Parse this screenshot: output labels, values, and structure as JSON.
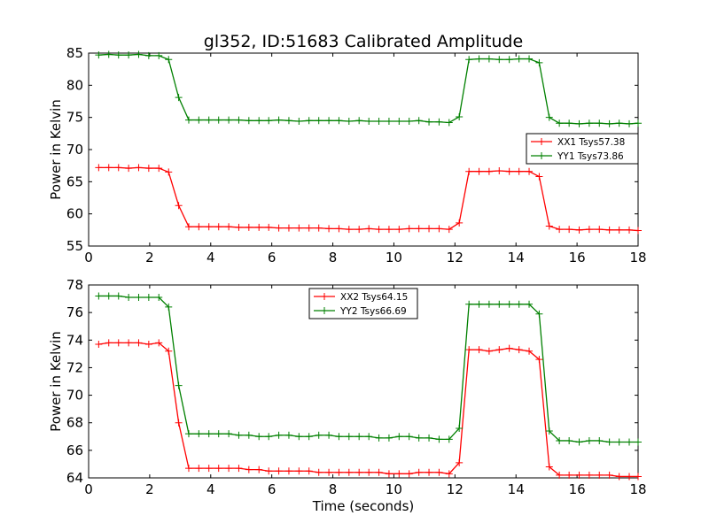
{
  "figure": {
    "title": "gl352, ID:51683 Calibrated Amplitude"
  },
  "chart_data": [
    {
      "type": "line",
      "title": "gl352, ID:51683 Calibrated Amplitude",
      "xlabel": "",
      "ylabel": "Power in Kelvin",
      "xlim": [
        0,
        18
      ],
      "ylim": [
        55,
        85
      ],
      "xticks": [
        0,
        2,
        4,
        6,
        8,
        10,
        12,
        14,
        16,
        18
      ],
      "yticks": [
        55,
        60,
        65,
        70,
        75,
        80,
        85
      ],
      "grid": false,
      "legend_position": "right",
      "x": [
        0.33,
        0.66,
        0.98,
        1.31,
        1.64,
        1.97,
        2.3,
        2.62,
        2.95,
        3.28,
        3.61,
        3.94,
        4.26,
        4.59,
        4.92,
        5.25,
        5.58,
        5.9,
        6.23,
        6.56,
        6.89,
        7.22,
        7.54,
        7.87,
        8.2,
        8.53,
        8.86,
        9.18,
        9.51,
        9.84,
        10.17,
        10.5,
        10.82,
        11.15,
        11.48,
        11.81,
        12.14,
        12.46,
        12.79,
        13.12,
        13.45,
        13.78,
        14.1,
        14.43,
        14.76,
        15.09,
        15.42,
        15.74,
        16.07,
        16.4,
        16.73,
        17.06,
        17.38,
        17.71,
        18.0
      ],
      "series": [
        {
          "name": "XX1 Tsys57.38",
          "color": "#ff0000",
          "values": [
            67.2,
            67.2,
            67.2,
            67.1,
            67.2,
            67.1,
            67.1,
            66.5,
            61.3,
            58.0,
            58.0,
            58.0,
            58.0,
            58.0,
            57.9,
            57.9,
            57.9,
            57.9,
            57.8,
            57.8,
            57.8,
            57.8,
            57.8,
            57.7,
            57.7,
            57.6,
            57.6,
            57.7,
            57.6,
            57.6,
            57.6,
            57.7,
            57.7,
            57.7,
            57.7,
            57.6,
            58.6,
            66.6,
            66.6,
            66.6,
            66.7,
            66.6,
            66.6,
            66.6,
            65.8,
            58.1,
            57.6,
            57.6,
            57.5,
            57.6,
            57.6,
            57.5,
            57.5,
            57.5,
            57.4
          ]
        },
        {
          "name": "YY1 Tsys73.86",
          "color": "#008000",
          "values": [
            84.7,
            84.8,
            84.7,
            84.7,
            84.8,
            84.6,
            84.6,
            84.0,
            78.1,
            74.6,
            74.6,
            74.6,
            74.6,
            74.6,
            74.6,
            74.5,
            74.5,
            74.5,
            74.6,
            74.5,
            74.4,
            74.5,
            74.5,
            74.5,
            74.5,
            74.4,
            74.5,
            74.4,
            74.4,
            74.4,
            74.4,
            74.4,
            74.5,
            74.3,
            74.3,
            74.2,
            75.1,
            84.0,
            84.1,
            84.1,
            84.0,
            84.0,
            84.1,
            84.1,
            83.5,
            75.0,
            74.1,
            74.1,
            74.0,
            74.1,
            74.1,
            74.0,
            74.1,
            74.0,
            74.1
          ]
        }
      ]
    },
    {
      "type": "line",
      "title": "",
      "xlabel": "Time (seconds)",
      "ylabel": "Power in Kelvin",
      "xlim": [
        0,
        18
      ],
      "ylim": [
        64,
        78
      ],
      "xticks": [
        0,
        2,
        4,
        6,
        8,
        10,
        12,
        14,
        16,
        18
      ],
      "yticks": [
        64,
        66,
        68,
        70,
        72,
        74,
        76,
        78
      ],
      "grid": false,
      "legend_position": "top-center",
      "x": [
        0.33,
        0.66,
        0.98,
        1.31,
        1.64,
        1.97,
        2.3,
        2.62,
        2.95,
        3.28,
        3.61,
        3.94,
        4.26,
        4.59,
        4.92,
        5.25,
        5.58,
        5.9,
        6.23,
        6.56,
        6.89,
        7.22,
        7.54,
        7.87,
        8.2,
        8.53,
        8.86,
        9.18,
        9.51,
        9.84,
        10.17,
        10.5,
        10.82,
        11.15,
        11.48,
        11.81,
        12.14,
        12.46,
        12.79,
        13.12,
        13.45,
        13.78,
        14.1,
        14.43,
        14.76,
        15.09,
        15.42,
        15.74,
        16.07,
        16.4,
        16.73,
        17.06,
        17.38,
        17.71,
        18.0
      ],
      "series": [
        {
          "name": "XX2 Tsys64.15",
          "color": "#ff0000",
          "values": [
            73.7,
            73.8,
            73.8,
            73.8,
            73.8,
            73.7,
            73.8,
            73.2,
            68.0,
            64.7,
            64.7,
            64.7,
            64.7,
            64.7,
            64.7,
            64.6,
            64.6,
            64.5,
            64.5,
            64.5,
            64.5,
            64.5,
            64.4,
            64.4,
            64.4,
            64.4,
            64.4,
            64.4,
            64.4,
            64.3,
            64.3,
            64.3,
            64.4,
            64.4,
            64.4,
            64.3,
            65.1,
            73.3,
            73.3,
            73.2,
            73.3,
            73.4,
            73.3,
            73.2,
            72.6,
            64.8,
            64.2,
            64.2,
            64.2,
            64.2,
            64.2,
            64.2,
            64.1,
            64.1,
            64.1
          ]
        },
        {
          "name": "YY2 Tsys66.69",
          "color": "#008000",
          "values": [
            77.2,
            77.2,
            77.2,
            77.1,
            77.1,
            77.1,
            77.1,
            76.4,
            70.7,
            67.2,
            67.2,
            67.2,
            67.2,
            67.2,
            67.1,
            67.1,
            67.0,
            67.0,
            67.1,
            67.1,
            67.0,
            67.0,
            67.1,
            67.1,
            67.0,
            67.0,
            67.0,
            67.0,
            66.9,
            66.9,
            67.0,
            67.0,
            66.9,
            66.9,
            66.8,
            66.8,
            67.6,
            76.6,
            76.6,
            76.6,
            76.6,
            76.6,
            76.6,
            76.6,
            75.9,
            67.4,
            66.7,
            66.7,
            66.6,
            66.7,
            66.7,
            66.6,
            66.6,
            66.6,
            66.6
          ]
        }
      ]
    }
  ]
}
